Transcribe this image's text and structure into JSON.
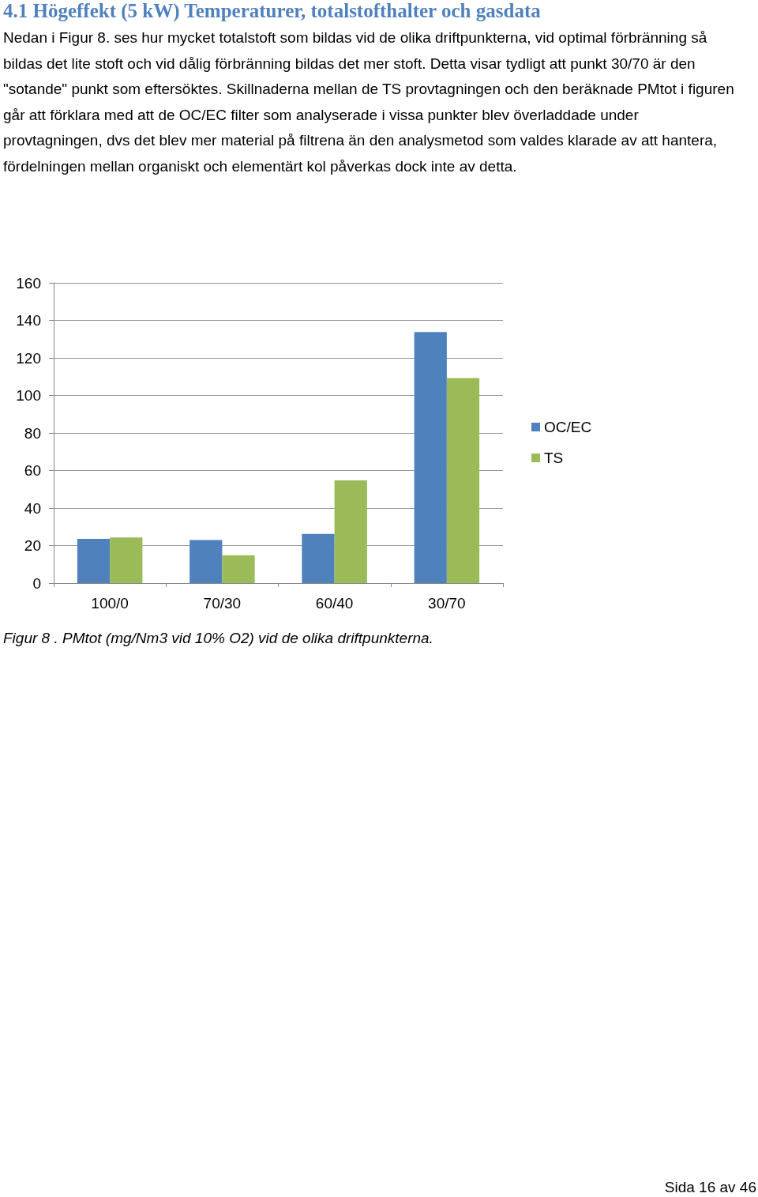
{
  "chart_data": {
    "type": "bar",
    "title": "4.1 Högeffekt (5 kW) Temperaturer, totalstofthalter och gasdata",
    "subtitle": "Nedan i Figur 8. ses hur mycket totalstoft som bildas vid de olika driftpunkterna, vid optimal förbränning så bildas det lite stoft och vid dålig förbränning bildas det mer stoft. Detta visar tydligt att punkt 30/70 är den \"sotande\" punkt som eftersöktes. Skillnaderna mellan de TS provtagningen och den beräknade PMtot i figuren går att förklara med att de OC/EC filter som analyserade i vissa punkter blev överladdade under provtagningen, dvs det blev mer material på filtrena än den analysmetod som valdes klarade av att hantera, fördelningen mellan organiskt och elementärt kol påverkas dock inte av detta.",
    "categories": [
      "100/0",
      "70/30",
      "60/40",
      "30/70"
    ],
    "series": [
      {
        "name": "OC/EC",
        "color": "#4f81bd",
        "values": [
          23.6,
          22.9,
          26.2,
          133.8
        ]
      },
      {
        "name": "TS",
        "color": "#9bbb59",
        "values": [
          24.3,
          14.8,
          54.7,
          109.3
        ]
      }
    ],
    "ylim": [
      0,
      160
    ],
    "yticks": [
      0,
      20,
      40,
      60,
      80,
      100,
      120,
      140,
      160
    ],
    "grid": "y",
    "legend": "right",
    "annotations": [
      "Figur 8 . PMtot (mg/Nm3 vid 10% O2) vid de olika driftpunkterna.",
      "Sida 16 av 46"
    ]
  }
}
